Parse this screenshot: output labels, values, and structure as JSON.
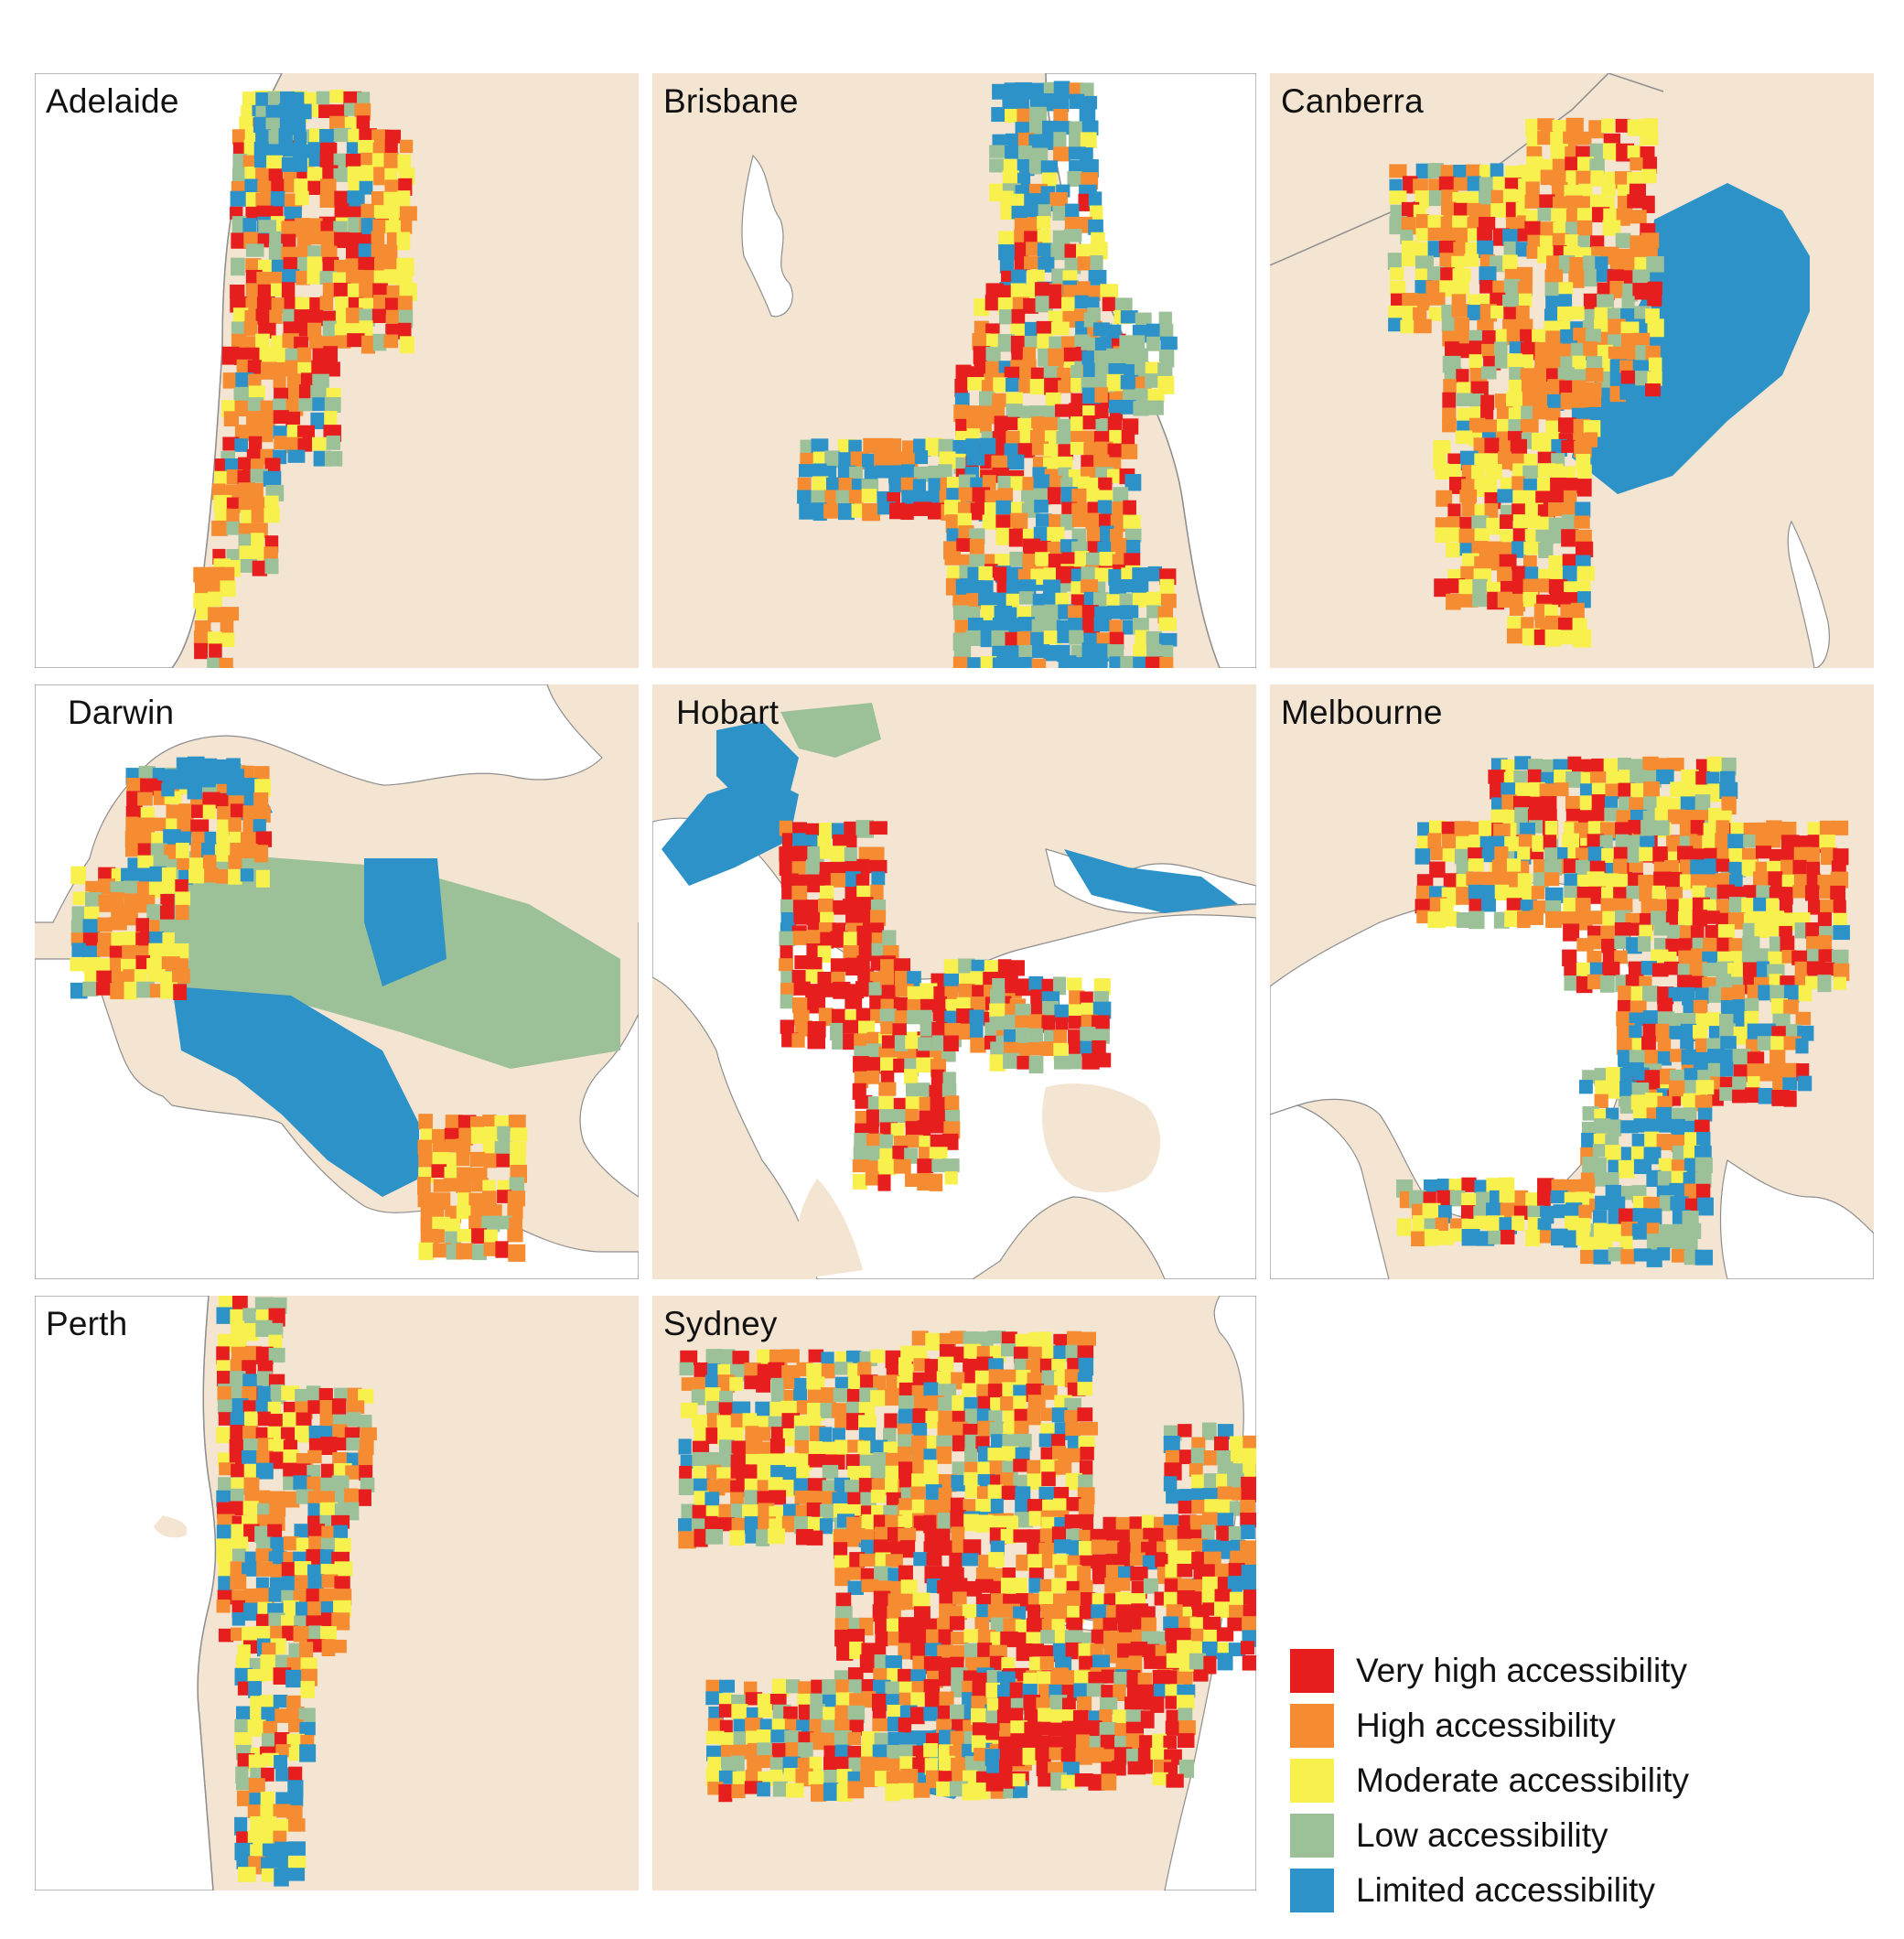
{
  "colors": {
    "land": "#f4e4d2",
    "water": "#ffffff",
    "coast": "#8e8e8e",
    "very_high": "#e61e1e",
    "high": "#f58c32",
    "moderate": "#f8f04c",
    "low": "#9cc198",
    "limited": "#2c92c8"
  },
  "panels": [
    {
      "id": "adelaide",
      "name": "Adelaide"
    },
    {
      "id": "brisbane",
      "name": "Brisbane"
    },
    {
      "id": "canberra",
      "name": "Canberra"
    },
    {
      "id": "darwin",
      "name": "Darwin"
    },
    {
      "id": "hobart",
      "name": "Hobart"
    },
    {
      "id": "melbourne",
      "name": "Melbourne"
    },
    {
      "id": "perth",
      "name": "Perth"
    },
    {
      "id": "sydney",
      "name": "Sydney"
    }
  ],
  "legend": [
    {
      "label": "Very high accessibility",
      "color_key": "very_high"
    },
    {
      "label": "High accessibility",
      "color_key": "high"
    },
    {
      "label": "Moderate accessibility",
      "color_key": "moderate"
    },
    {
      "label": "Low accessibility",
      "color_key": "low"
    },
    {
      "label": "Limited accessibility",
      "color_key": "limited"
    }
  ]
}
